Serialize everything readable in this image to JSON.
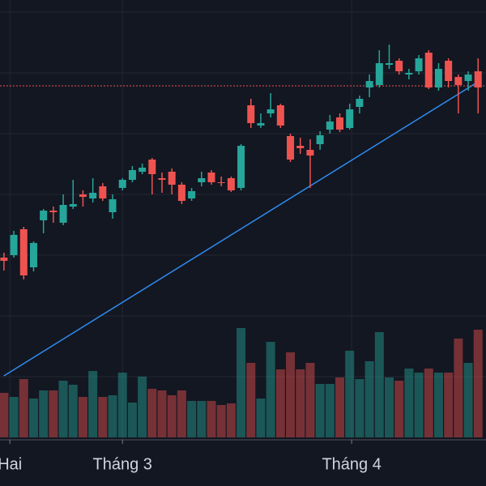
{
  "chart_data": {
    "type": "candlestick",
    "x": [
      0,
      1,
      2,
      3,
      4,
      5,
      6,
      7,
      8,
      9,
      10,
      11,
      12,
      13,
      14,
      15,
      16,
      17,
      18,
      19,
      20,
      21,
      22,
      23,
      24,
      25,
      26,
      27,
      28,
      29,
      30,
      31,
      32,
      33,
      34,
      35,
      36,
      37,
      38,
      39,
      40,
      41,
      42,
      43,
      44,
      45,
      46,
      47,
      48
    ],
    "open": [
      282,
      285,
      317,
      270,
      328,
      340,
      325,
      345,
      360,
      355,
      370,
      338,
      368,
      378,
      388,
      403,
      380,
      388,
      372,
      355,
      375,
      387,
      375,
      380,
      368,
      470,
      445,
      460,
      470,
      432,
      420,
      415,
      422,
      440,
      455,
      442,
      468,
      492,
      495,
      520,
      525,
      508,
      512,
      535,
      492,
      525,
      505,
      500,
      512
    ],
    "high": [
      288,
      315,
      320,
      302,
      342,
      345,
      360,
      378,
      365,
      380,
      374,
      360,
      380,
      395,
      398,
      405,
      387,
      392,
      375,
      368,
      388,
      390,
      382,
      382,
      422,
      478,
      460,
      485,
      472,
      435,
      430,
      428,
      438,
      458,
      460,
      472,
      482,
      508,
      538,
      545,
      528,
      515,
      532,
      538,
      522,
      528,
      508,
      512,
      528
    ],
    "low": [
      266,
      282,
      255,
      265,
      312,
      325,
      322,
      342,
      345,
      350,
      352,
      330,
      365,
      375,
      385,
      360,
      362,
      360,
      348,
      352,
      370,
      372,
      370,
      363,
      365,
      442,
      442,
      455,
      442,
      400,
      410,
      368,
      415,
      435,
      437,
      440,
      460,
      480,
      492,
      515,
      508,
      502,
      508,
      490,
      488,
      492,
      460,
      488,
      460
    ],
    "close": [
      278,
      310,
      260,
      300,
      340,
      338,
      347,
      348,
      357,
      362,
      355,
      354,
      378,
      390,
      393,
      385,
      378,
      372,
      352,
      364,
      380,
      375,
      374,
      365,
      420,
      448,
      448,
      465,
      445,
      403,
      417,
      408,
      433,
      450,
      440,
      465,
      478,
      500,
      522,
      522,
      512,
      510,
      528,
      492,
      515,
      500,
      495,
      508,
      492
    ],
    "volume": [
      55,
      50,
      72,
      48,
      58,
      58,
      70,
      65,
      50,
      82,
      50,
      52,
      80,
      43,
      75,
      60,
      58,
      52,
      58,
      45,
      45,
      45,
      40,
      42,
      135,
      92,
      48,
      118,
      84,
      105,
      84,
      92,
      66,
      66,
      74,
      107,
      72,
      94,
      130,
      74,
      70,
      85,
      80,
      85,
      80,
      80,
      122,
      92,
      133
    ],
    "up_color": "#26a69a",
    "down_color": "#ef5350",
    "background": "#131722",
    "ylim": [
      0,
      600
    ],
    "yticks": [
      585,
      510,
      435,
      360,
      285,
      210,
      135
    ],
    "volume_ylim": [
      0,
      540
    ],
    "xlim": [
      -0.4,
      48.8
    ],
    "xticks": [
      {
        "value": 0.6,
        "label": "Hai"
      },
      {
        "value": 12,
        "label": "Tháng 3"
      },
      {
        "value": 35.2,
        "label": "Tháng 4"
      }
    ],
    "price_line": 494,
    "trend_line": {
      "x": [
        0,
        48
      ],
      "y": [
        136,
        499
      ],
      "color": "#2f8cf0"
    },
    "grid": true
  }
}
